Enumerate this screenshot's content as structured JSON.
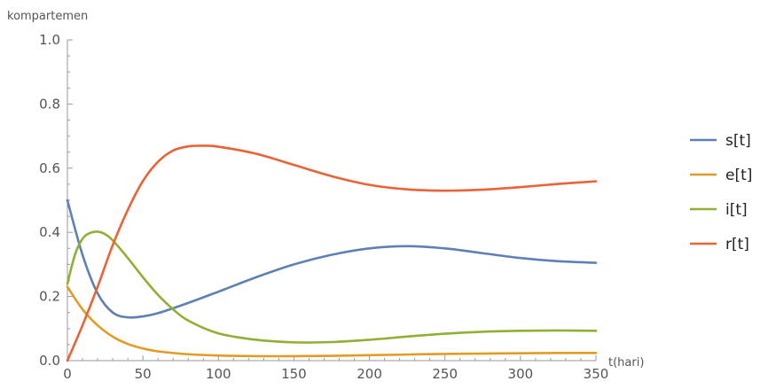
{
  "chart_data": {
    "type": "line",
    "title": "",
    "xlabel": "t(hari)",
    "ylabel": "kompartemen",
    "xlim": [
      0,
      350
    ],
    "ylim": [
      0,
      1.0
    ],
    "xticks": [
      0,
      50,
      100,
      150,
      200,
      250,
      300,
      350
    ],
    "yticks": [
      0.0,
      0.2,
      0.4,
      0.6,
      0.8,
      1.0
    ],
    "xtick_labels": [
      "0",
      "50",
      "100",
      "150",
      "200",
      "250",
      "300",
      "350"
    ],
    "ytick_labels": [
      "0.0",
      "0.2",
      "0.4",
      "0.6",
      "0.8",
      "1.0"
    ],
    "grid": false,
    "legend_position": "right",
    "series": [
      {
        "name": "s[t]",
        "color": "#5e81b5",
        "x": [
          0,
          10,
          20,
          30,
          40,
          50,
          60,
          80,
          100,
          125,
          150,
          175,
          200,
          225,
          250,
          275,
          300,
          325,
          350
        ],
        "y": [
          0.5,
          0.33,
          0.21,
          0.15,
          0.135,
          0.138,
          0.148,
          0.18,
          0.215,
          0.26,
          0.3,
          0.33,
          0.35,
          0.357,
          0.35,
          0.335,
          0.32,
          0.31,
          0.305
        ]
      },
      {
        "name": "e[t]",
        "color": "#e19c24",
        "x": [
          0,
          10,
          20,
          30,
          40,
          50,
          60,
          80,
          100,
          125,
          150,
          175,
          200,
          225,
          250,
          275,
          300,
          325,
          350
        ],
        "y": [
          0.23,
          0.16,
          0.11,
          0.075,
          0.052,
          0.038,
          0.029,
          0.02,
          0.016,
          0.014,
          0.014,
          0.015,
          0.017,
          0.019,
          0.021,
          0.022,
          0.023,
          0.024,
          0.024
        ]
      },
      {
        "name": "i[t]",
        "color": "#8fb032",
        "x": [
          0,
          5,
          10,
          15,
          20,
          25,
          30,
          40,
          50,
          60,
          70,
          80,
          100,
          125,
          150,
          175,
          200,
          225,
          250,
          275,
          300,
          325,
          350
        ],
        "y": [
          0.24,
          0.33,
          0.38,
          0.398,
          0.402,
          0.394,
          0.375,
          0.32,
          0.26,
          0.205,
          0.16,
          0.125,
          0.085,
          0.065,
          0.057,
          0.058,
          0.065,
          0.075,
          0.084,
          0.09,
          0.093,
          0.094,
          0.093
        ]
      },
      {
        "name": "r[t]",
        "color": "#eb6235",
        "x": [
          0,
          10,
          20,
          30,
          40,
          50,
          60,
          70,
          80,
          90,
          100,
          125,
          150,
          175,
          200,
          225,
          250,
          275,
          300,
          325,
          350
        ],
        "y": [
          0.0,
          0.11,
          0.23,
          0.36,
          0.47,
          0.56,
          0.62,
          0.655,
          0.668,
          0.67,
          0.667,
          0.645,
          0.61,
          0.575,
          0.548,
          0.534,
          0.53,
          0.533,
          0.541,
          0.551,
          0.559
        ]
      }
    ]
  }
}
